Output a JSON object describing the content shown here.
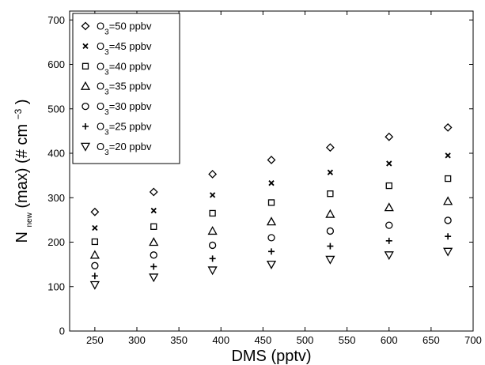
{
  "chart_data": {
    "type": "scatter",
    "xlabel": "DMS (pptv)",
    "ylabel": {
      "main": "N",
      "sub": "new",
      "mid": "(max) (# cm",
      "sup": "−3",
      "end": ")"
    },
    "xlim": [
      220,
      700
    ],
    "ylim": [
      0,
      720
    ],
    "xticks": [
      250,
      300,
      350,
      400,
      450,
      500,
      550,
      600,
      650,
      700
    ],
    "yticks": [
      0,
      100,
      200,
      300,
      400,
      500,
      600,
      700
    ],
    "grid": false,
    "legend_position": "top-left",
    "x": [
      250,
      320,
      390,
      460,
      530,
      600,
      670
    ],
    "series": [
      {
        "name": "O3=50 ppbv",
        "label_base": "O",
        "label_sub": "3",
        "label_rest": "=50 ppbv",
        "marker": "diamond",
        "values": [
          268,
          313,
          353,
          385,
          413,
          437,
          458
        ]
      },
      {
        "name": "O3=45 ppbv",
        "label_base": "O",
        "label_sub": "3",
        "label_rest": "=45 ppbv",
        "marker": "x",
        "values": [
          232,
          271,
          306,
          333,
          357,
          377,
          395
        ]
      },
      {
        "name": "O3=40 ppbv",
        "label_base": "O",
        "label_sub": "3",
        "label_rest": "=40 ppbv",
        "marker": "square",
        "values": [
          201,
          235,
          265,
          289,
          309,
          327,
          343
        ]
      },
      {
        "name": "O3=35 ppbv",
        "label_base": "O",
        "label_sub": "3",
        "label_rest": "=35 ppbv",
        "marker": "triangle-up",
        "values": [
          171,
          200,
          225,
          246,
          263,
          278,
          292
        ]
      },
      {
        "name": "O3=30 ppbv",
        "label_base": "O",
        "label_sub": "3",
        "label_rest": "=30 ppbv",
        "marker": "circle",
        "values": [
          147,
          171,
          193,
          210,
          225,
          238,
          249
        ]
      },
      {
        "name": "O3=25 ppbv",
        "label_base": "O",
        "label_sub": "3",
        "label_rest": "=25 ppbv",
        "marker": "plus",
        "values": [
          124,
          145,
          163,
          179,
          191,
          203,
          213
        ]
      },
      {
        "name": "O3=20 ppbv",
        "label_base": "O",
        "label_sub": "3",
        "label_rest": "=20 ppbv",
        "marker": "triangle-down",
        "values": [
          104,
          121,
          137,
          150,
          161,
          171,
          179
        ]
      }
    ]
  }
}
